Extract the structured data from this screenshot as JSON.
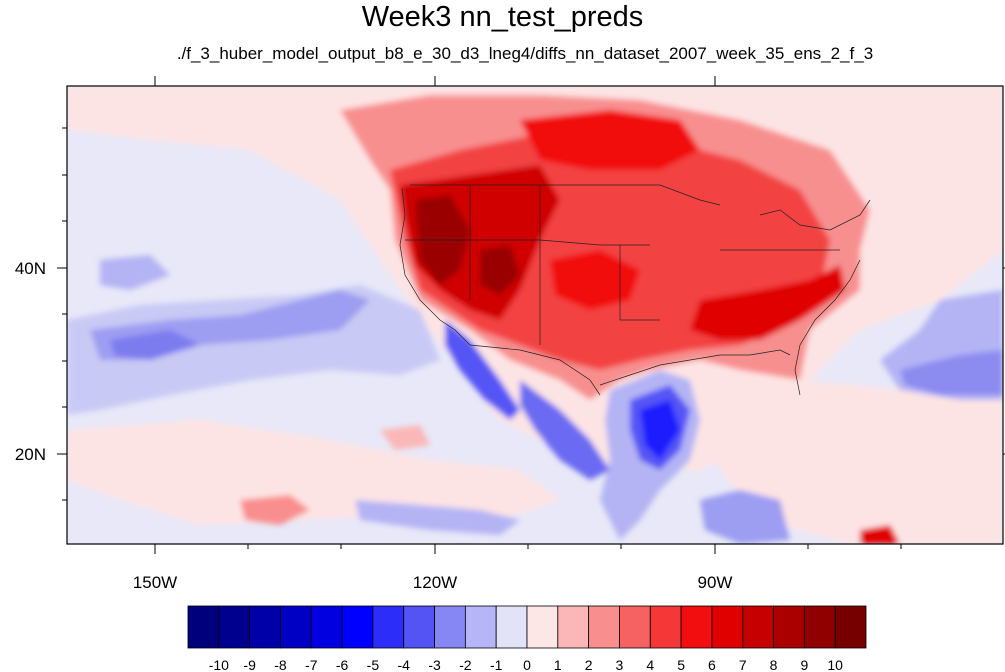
{
  "title": "Week3 nn_test_preds",
  "subtitle": "./f_3_huber_model_output_b8_e_30_d3_lneg4/diffs_nn_dataset_2007_week_35_ens_2_f_3",
  "map": {
    "lon_ticks": [
      "150W",
      "120W",
      "90W"
    ],
    "lat_ticks": [
      "40N",
      "20N"
    ]
  },
  "colorbar": {
    "labels": [
      "-10",
      "-9",
      "-8",
      "-7",
      "-6",
      "-5",
      "-4",
      "-3",
      "-2",
      "-1",
      "0",
      "1",
      "2",
      "3",
      "4",
      "5",
      "6",
      "7",
      "8",
      "9",
      "10"
    ],
    "colors": [
      "#00007a",
      "#00008f",
      "#0000a8",
      "#0000c4",
      "#0000e0",
      "#0000ff",
      "#2d2dfa",
      "#5454f5",
      "#8686f5",
      "#b5b5f8",
      "#e3e3f8",
      "#fde6e6",
      "#fbb7b7",
      "#f98e8e",
      "#f66262",
      "#f43737",
      "#f20e0e",
      "#e00000",
      "#c60000",
      "#ab0000",
      "#900000",
      "#760000"
    ]
  }
}
